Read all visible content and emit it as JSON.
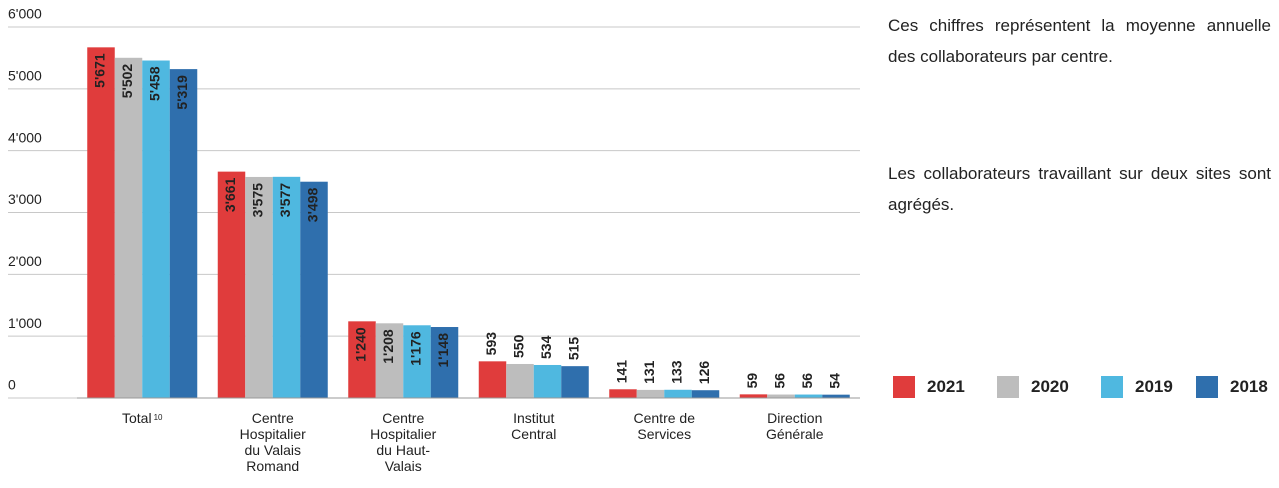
{
  "chart_data": {
    "type": "bar",
    "categories": [
      "Total",
      "Centre Hospitalier du Valais Romand",
      "Centre Hospitalier du Haut-Valais",
      "Institut Central",
      "Centre de Services",
      "Direction Générale"
    ],
    "total_note": "10",
    "series": [
      {
        "name": "2021",
        "color": "#e03c3c",
        "values": [
          5671,
          3661,
          1240,
          593,
          141,
          59
        ],
        "value_labels": [
          "5'671",
          "3'661",
          "1'240",
          "593",
          "141",
          "59"
        ]
      },
      {
        "name": "2020",
        "color": "#bdbdbd",
        "values": [
          5502,
          3575,
          1208,
          550,
          131,
          56
        ],
        "value_labels": [
          "5'502",
          "3'575",
          "1'208",
          "550",
          "131",
          "56"
        ]
      },
      {
        "name": "2019",
        "color": "#4fb8e0",
        "values": [
          5458,
          3577,
          1176,
          534,
          133,
          56
        ],
        "value_labels": [
          "5'458",
          "3'577",
          "1'176",
          "534",
          "133",
          "56"
        ]
      },
      {
        "name": "2018",
        "color": "#2f6fad",
        "values": [
          5319,
          3498,
          1148,
          515,
          126,
          54
        ],
        "value_labels": [
          "5'319",
          "3'498",
          "1'148",
          "515",
          "126",
          "54"
        ]
      }
    ],
    "ylim": [
      0,
      6000
    ],
    "yticks": [
      0,
      {
        "value": 1000,
        "label": "1'000"
      },
      {
        "value": 2000,
        "label": "2'000"
      },
      {
        "value": 3000,
        "label": "3'000"
      },
      {
        "value": 4000,
        "label": "4'000"
      },
      {
        "value": 5000,
        "label": "5'000"
      },
      {
        "value": 6000,
        "label": "6'000"
      }
    ],
    "grid": true,
    "notes": [
      "Ces chiffres représentent la moyenne annuelle des collaborateurs par centre.",
      "Les collaborateurs travaillant sur deux sites sont agrégés."
    ]
  }
}
